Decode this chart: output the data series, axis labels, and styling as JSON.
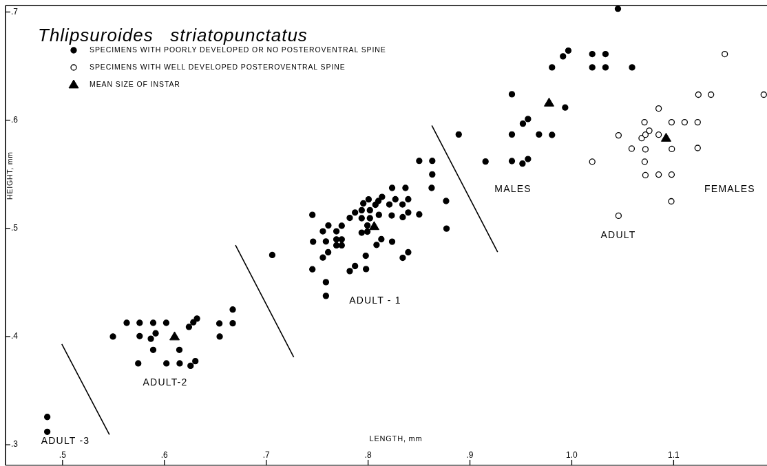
{
  "chart_data": {
    "type": "scatter",
    "title": "Thlipsuroides   striatopunctatus",
    "xlabel": "LENGTH, mm",
    "ylabel": "HEIGHT, mm",
    "xlim": [
      0.444,
      1.191
    ],
    "ylim": [
      0.281,
      0.706
    ],
    "xticks": [
      {
        "value": 0.5,
        "label": ".5"
      },
      {
        "value": 0.6,
        "label": ".6"
      },
      {
        "value": 0.7,
        "label": ".7"
      },
      {
        "value": 0.8,
        "label": ".8"
      },
      {
        "value": 0.9,
        "label": ".9"
      },
      {
        "value": 1.0,
        "label": "1.0"
      },
      {
        "value": 1.1,
        "label": "1.1"
      }
    ],
    "yticks": [
      {
        "value": 0.3,
        "label": ".3"
      },
      {
        "value": 0.4,
        "label": ".4"
      },
      {
        "value": 0.5,
        "label": ".5"
      },
      {
        "value": 0.6,
        "label": ".6"
      },
      {
        "value": 0.7,
        "label": ".7"
      }
    ],
    "legend": "top left",
    "series": [
      {
        "name": "SPECIMENS WITH POORLY DEVELOPED OR NO POSTEROVENTRAL SPINE",
        "color": "#000000",
        "marker": "circle",
        "x": [
          0.485,
          0.485,
          0.5495,
          0.563,
          0.5757,
          0.589,
          0.6018,
          0.5757,
          0.5867,
          0.5914,
          0.589,
          0.6147,
          0.5743,
          0.602,
          0.615,
          0.6257,
          0.6304,
          0.6241,
          0.6284,
          0.632,
          0.654,
          0.6671,
          0.6671,
          0.6543,
          0.7059,
          0.7453,
          0.746,
          0.7453,
          0.7556,
          0.761,
          0.7586,
          0.7556,
          0.7608,
          0.7586,
          0.7586,
          0.7689,
          0.7741,
          0.7689,
          0.7741,
          0.7689,
          0.7741,
          0.782,
          0.7872,
          0.7953,
          0.8005,
          0.7937,
          0.7937,
          0.8018,
          0.8018,
          0.7993,
          0.7937,
          0.7993,
          0.8072,
          0.8101,
          0.8137,
          0.8106,
          0.8209,
          0.8268,
          0.8338,
          0.8394,
          0.8232,
          0.834,
          0.8394,
          0.8502,
          0.813,
          0.8083,
          0.8236,
          0.7977,
          0.798,
          0.782,
          0.7872,
          0.834,
          0.8394,
          0.8766,
          0.877,
          0.8236,
          0.8367,
          0.8502,
          0.863,
          0.863,
          0.8624,
          0.889,
          0.9153,
          0.9412,
          0.9516,
          0.957,
          0.9412,
          0.952,
          0.957,
          0.9678,
          0.9806,
          0.9412,
          0.9935,
          0.9806,
          0.9914,
          0.9966,
          1.0201,
          1.0331,
          1.0592,
          1.0201,
          1.0331,
          1.0453
        ],
        "values": [
          0.3257,
          0.312,
          0.4,
          0.4127,
          0.4127,
          0.4127,
          0.4127,
          0.4004,
          0.398,
          0.403,
          0.3877,
          0.3877,
          0.3752,
          0.3752,
          0.3752,
          0.373,
          0.3773,
          0.4089,
          0.4132,
          0.4166,
          0.4121,
          0.4123,
          0.425,
          0.4,
          0.4754,
          0.5125,
          0.4877,
          0.4622,
          0.4973,
          0.5027,
          0.4879,
          0.473,
          0.4779,
          0.4503,
          0.4376,
          0.4973,
          0.5024,
          0.4898,
          0.4898,
          0.4843,
          0.4843,
          0.5097,
          0.5146,
          0.5231,
          0.5268,
          0.5168,
          0.5094,
          0.5168,
          0.5094,
          0.5027,
          0.496,
          0.497,
          0.5218,
          0.5253,
          0.5291,
          0.5125,
          0.5221,
          0.5269,
          0.5221,
          0.5269,
          0.5119,
          0.5104,
          0.5146,
          0.5129,
          0.49,
          0.4847,
          0.4877,
          0.4747,
          0.4624,
          0.4605,
          0.4652,
          0.4728,
          0.4779,
          0.5253,
          0.4998,
          0.5374,
          0.5374,
          0.5624,
          0.5624,
          0.5499,
          0.5374,
          0.5868,
          0.5618,
          0.5622,
          0.5599,
          0.5641,
          0.5868,
          0.5968,
          0.6011,
          0.5868,
          0.5864,
          0.624,
          0.6117,
          0.6488,
          0.659,
          0.6643,
          0.6488,
          0.6488,
          0.6488,
          0.6611,
          0.6611,
          0.703
        ]
      },
      {
        "name": "SPECIMENS WITH WELL DEVELOPED POSTEROVENTRAL SPINE",
        "color": "#ffffff",
        "marker": "circle",
        "x": [
          1.1243,
          1.1367,
          1.1885,
          1.0853,
          1.0714,
          1.098,
          1.1108,
          1.1236,
          1.0459,
          1.0686,
          1.0723,
          1.0761,
          1.0853,
          1.0588,
          1.0723,
          1.0982,
          1.1236,
          1.0201,
          1.0716,
          1.0723,
          1.0853,
          1.098,
          1.0977,
          1.0459,
          1.1502
        ],
        "values": [
          0.6236,
          0.6236,
          0.6236,
          0.6108,
          0.5981,
          0.5981,
          0.5981,
          0.5981,
          0.586,
          0.5834,
          0.5866,
          0.5903,
          0.5866,
          0.5737,
          0.5731,
          0.5734,
          0.5743,
          0.5616,
          0.5616,
          0.5492,
          0.5497,
          0.5497,
          0.525,
          0.5117,
          0.6611
        ]
      },
      {
        "name": "MEAN SIZE OF INSTAR",
        "color": "#000000",
        "marker": "triangle",
        "x": [
          0.61,
          0.806,
          0.9777,
          1.0926
        ],
        "values": [
          0.4,
          0.5019,
          0.6161,
          0.5836
        ]
      },
      {
        "type": "line",
        "color": "#000000",
        "marker": "none",
        "x": [
          0.4993,
          0.546
        ],
        "values": [
          0.393,
          0.3094
        ]
      },
      {
        "type": "line",
        "color": "#000000",
        "marker": "none",
        "x": [
          0.6698,
          0.727
        ],
        "values": [
          0.4845,
          0.381
        ]
      },
      {
        "type": "line",
        "color": "#000000",
        "marker": "none",
        "x": [
          0.8626,
          0.9272
        ],
        "values": [
          0.5951,
          0.4782
        ]
      }
    ],
    "annotations": [
      "ADULT -3",
      "ADULT-2",
      "ADULT - 1",
      "MALES",
      "FEMALES",
      "ADULT"
    ]
  }
}
